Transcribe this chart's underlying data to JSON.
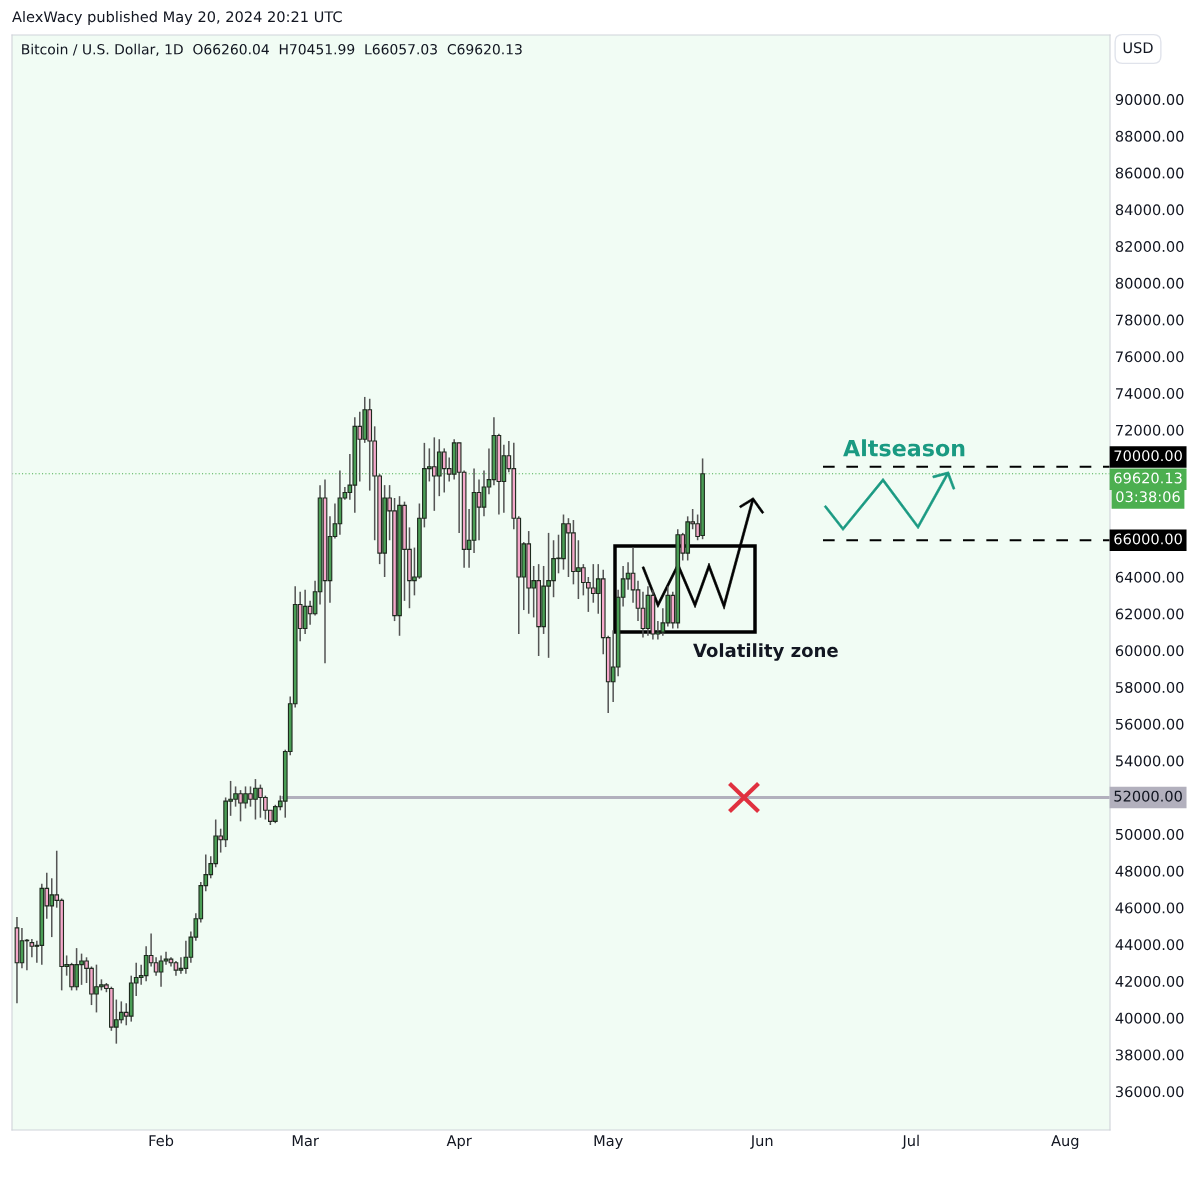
{
  "chart_data": {
    "type": "candlestick",
    "title": "Bitcoin / U.S. Dollar, 1D  O66260.04  H70451.99  L66057.03  C69620.13",
    "annotations": [
      "AlexWacy published May 20, 2024 20:21 UTC",
      "Altseason",
      "Volatility zone",
      "USD",
      "03:38:06"
    ],
    "x": [
      "2024-01-03",
      "2024-01-04",
      "2024-01-05",
      "2024-01-06",
      "2024-01-07",
      "2024-01-08",
      "2024-01-09",
      "2024-01-10",
      "2024-01-11",
      "2024-01-12",
      "2024-01-13",
      "2024-01-14",
      "2024-01-15",
      "2024-01-16",
      "2024-01-17",
      "2024-01-18",
      "2024-01-19",
      "2024-01-20",
      "2024-01-21",
      "2024-01-22",
      "2024-01-23",
      "2024-01-24",
      "2024-01-25",
      "2024-01-26",
      "2024-01-27",
      "2024-01-28",
      "2024-01-29",
      "2024-01-30",
      "2024-01-31",
      "2024-02-01",
      "2024-02-02",
      "2024-02-03",
      "2024-02-04",
      "2024-02-05",
      "2024-02-06",
      "2024-02-07",
      "2024-02-08",
      "2024-02-09",
      "2024-02-10",
      "2024-02-11",
      "2024-02-12",
      "2024-02-13",
      "2024-02-14",
      "2024-02-15",
      "2024-02-16",
      "2024-02-17",
      "2024-02-18",
      "2024-02-19",
      "2024-02-20",
      "2024-02-21",
      "2024-02-22",
      "2024-02-23",
      "2024-02-24",
      "2024-02-25",
      "2024-02-26",
      "2024-02-27",
      "2024-02-28",
      "2024-02-29",
      "2024-03-01",
      "2024-03-02",
      "2024-03-03",
      "2024-03-04",
      "2024-03-05",
      "2024-03-06",
      "2024-03-07",
      "2024-03-08",
      "2024-03-09",
      "2024-03-10",
      "2024-03-11",
      "2024-03-12",
      "2024-03-13",
      "2024-03-14",
      "2024-03-15",
      "2024-03-16",
      "2024-03-17",
      "2024-03-18",
      "2024-03-19",
      "2024-03-20",
      "2024-03-21",
      "2024-03-22",
      "2024-03-23",
      "2024-03-24",
      "2024-03-25",
      "2024-03-26",
      "2024-03-27",
      "2024-03-28",
      "2024-03-29",
      "2024-03-30",
      "2024-03-31",
      "2024-04-01",
      "2024-04-02",
      "2024-04-03",
      "2024-04-04",
      "2024-04-05",
      "2024-04-06",
      "2024-04-07",
      "2024-04-08",
      "2024-04-09",
      "2024-04-10",
      "2024-04-11",
      "2024-04-12",
      "2024-04-13",
      "2024-04-14",
      "2024-04-15",
      "2024-04-16",
      "2024-04-17",
      "2024-04-18",
      "2024-04-19",
      "2024-04-20",
      "2024-04-21",
      "2024-04-22",
      "2024-04-23",
      "2024-04-24",
      "2024-04-25",
      "2024-04-26",
      "2024-04-27",
      "2024-04-28",
      "2024-04-29",
      "2024-04-30",
      "2024-05-01",
      "2024-05-02",
      "2024-05-03",
      "2024-05-04",
      "2024-05-05",
      "2024-05-06",
      "2024-05-07",
      "2024-05-08",
      "2024-05-09",
      "2024-05-10",
      "2024-05-11",
      "2024-05-12",
      "2024-05-13",
      "2024-05-14",
      "2024-05-15",
      "2024-05-16",
      "2024-05-17",
      "2024-05-18",
      "2024-05-19",
      "2024-05-20"
    ],
    "ohlc": [
      [
        44900,
        45500,
        40800,
        43000
      ],
      [
        43000,
        44900,
        42700,
        44200
      ],
      [
        44200,
        44300,
        42600,
        44200
      ],
      [
        44100,
        44300,
        43300,
        43900
      ],
      [
        43900,
        44200,
        43000,
        43950
      ],
      [
        43950,
        47300,
        42900,
        47050
      ],
      [
        47050,
        47900,
        45400,
        46100
      ],
      [
        46100,
        47600,
        44400,
        46700
      ],
      [
        46700,
        49100,
        46000,
        46400
      ],
      [
        46400,
        46500,
        41500,
        42800
      ],
      [
        42800,
        43400,
        42300,
        42900
      ],
      [
        42900,
        43000,
        41500,
        41700
      ],
      [
        41700,
        43800,
        41500,
        42900
      ],
      [
        42900,
        43500,
        41800,
        43100
      ],
      [
        43100,
        43300,
        41900,
        42700
      ],
      [
        42700,
        42800,
        40700,
        41300
      ],
      [
        41300,
        42900,
        40300,
        41700
      ],
      [
        41700,
        42100,
        41500,
        41800
      ],
      [
        41800,
        41900,
        41400,
        41600
      ],
      [
        41600,
        41700,
        39300,
        39500
      ],
      [
        39500,
        41000,
        38600,
        39900
      ],
      [
        39900,
        40900,
        39700,
        40300
      ],
      [
        40300,
        40800,
        39600,
        40100
      ],
      [
        40100,
        42300,
        39800,
        41900
      ],
      [
        41900,
        43000,
        41200,
        42200
      ],
      [
        42200,
        42900,
        41800,
        42300
      ],
      [
        42300,
        43900,
        42000,
        43400
      ],
      [
        43400,
        44600,
        42800,
        43000
      ],
      [
        43000,
        43300,
        42300,
        42500
      ],
      [
        42500,
        43400,
        41700,
        43100
      ],
      [
        43100,
        43600,
        42900,
        43200
      ],
      [
        43200,
        43300,
        42800,
        43000
      ],
      [
        43000,
        43100,
        42300,
        42600
      ],
      [
        42600,
        43300,
        42400,
        42700
      ],
      [
        42700,
        44200,
        42400,
        43300
      ],
      [
        43300,
        44700,
        43000,
        44400
      ],
      [
        44400,
        45700,
        44200,
        45400
      ],
      [
        45400,
        47400,
        45200,
        47200
      ],
      [
        47200,
        48900,
        46900,
        47800
      ],
      [
        47800,
        48800,
        47600,
        48400
      ],
      [
        48400,
        50800,
        48200,
        49900
      ],
      [
        49900,
        50300,
        49000,
        49700
      ],
      [
        49700,
        52000,
        49300,
        51800
      ],
      [
        51800,
        52900,
        51000,
        51900
      ],
      [
        51900,
        52600,
        51500,
        52200
      ],
      [
        52200,
        52400,
        50700,
        51700
      ],
      [
        51700,
        52600,
        51400,
        52200
      ],
      [
        52200,
        52600,
        51500,
        51900
      ],
      [
        51900,
        53000,
        50800,
        52500
      ],
      [
        52500,
        52700,
        50900,
        52000
      ],
      [
        52000,
        52100,
        50800,
        51300
      ],
      [
        51300,
        51300,
        50500,
        50700
      ],
      [
        50700,
        51600,
        50600,
        51500
      ],
      [
        51500,
        52100,
        51300,
        51800
      ],
      [
        51800,
        54600,
        50900,
        54500
      ],
      [
        54500,
        57500,
        54300,
        57100
      ],
      [
        57100,
        63500,
        56900,
        62500
      ],
      [
        62500,
        63200,
        60500,
        61200
      ],
      [
        61200,
        63300,
        60900,
        62400
      ],
      [
        62400,
        62700,
        61400,
        62000
      ],
      [
        62000,
        63800,
        61900,
        63200
      ],
      [
        63200,
        69000,
        62500,
        68300
      ],
      [
        68300,
        69300,
        59300,
        63800
      ],
      [
        63800,
        67300,
        62600,
        66200
      ],
      [
        66200,
        68000,
        66100,
        66900
      ],
      [
        66900,
        69800,
        66300,
        68300
      ],
      [
        68300,
        68900,
        68200,
        68600
      ],
      [
        68600,
        70700,
        68200,
        69000
      ],
      [
        69000,
        72700,
        67500,
        72200
      ],
      [
        72200,
        73000,
        69200,
        71500
      ],
      [
        71500,
        73800,
        71300,
        73100
      ],
      [
        73100,
        73700,
        68700,
        71400
      ],
      [
        71400,
        72200,
        66000,
        69500
      ],
      [
        69500,
        69600,
        64700,
        65300
      ],
      [
        65300,
        69000,
        64000,
        68300
      ],
      [
        68300,
        69000,
        66000,
        67600
      ],
      [
        67600,
        68300,
        61600,
        61900
      ],
      [
        61900,
        68400,
        60800,
        67900
      ],
      [
        67900,
        68100,
        62700,
        65500
      ],
      [
        65500,
        66700,
        62300,
        63800
      ],
      [
        63800,
        65600,
        63000,
        64000
      ],
      [
        64000,
        68000,
        63900,
        67200
      ],
      [
        67200,
        71300,
        66700,
        69900
      ],
      [
        69900,
        71000,
        69200,
        70000
      ],
      [
        70000,
        71600,
        67600,
        69500
      ],
      [
        69500,
        71500,
        68400,
        70800
      ],
      [
        70800,
        71000,
        68600,
        69900
      ],
      [
        69900,
        70500,
        69200,
        69600
      ],
      [
        69600,
        71500,
        69300,
        71300
      ],
      [
        71300,
        71300,
        66400,
        69700
      ],
      [
        69700,
        69800,
        64500,
        65500
      ],
      [
        65500,
        67700,
        64500,
        66000
      ],
      [
        66000,
        69900,
        65300,
        68600
      ],
      [
        68600,
        69300,
        66000,
        67800
      ],
      [
        67800,
        69800,
        67300,
        68900
      ],
      [
        68900,
        71000,
        68500,
        69300
      ],
      [
        69300,
        72700,
        69000,
        71700
      ],
      [
        71700,
        71800,
        67400,
        69200
      ],
      [
        69200,
        71200,
        67500,
        70600
      ],
      [
        70600,
        71400,
        69700,
        69900
      ],
      [
        69900,
        71300,
        66600,
        67200
      ],
      [
        67200,
        67300,
        60900,
        64000
      ],
      [
        64000,
        65900,
        62200,
        65800
      ],
      [
        65800,
        66500,
        62000,
        63400
      ],
      [
        63400,
        64600,
        61800,
        63800
      ],
      [
        63800,
        64700,
        59700,
        61300
      ],
      [
        61300,
        64600,
        60900,
        63500
      ],
      [
        63500,
        66400,
        59600,
        63800
      ],
      [
        63800,
        66000,
        62900,
        65000
      ],
      [
        65000,
        66300,
        64200,
        65000
      ],
      [
        65000,
        67400,
        64400,
        66900
      ],
      [
        66900,
        67200,
        64000,
        66400
      ],
      [
        66400,
        67100,
        63600,
        64300
      ],
      [
        64300,
        66000,
        62800,
        64500
      ],
      [
        64500,
        64700,
        63000,
        63700
      ],
      [
        63700,
        64000,
        62100,
        63400
      ],
      [
        63400,
        64700,
        62600,
        63100
      ],
      [
        63100,
        64700,
        62000,
        63900
      ],
      [
        63900,
        64400,
        59800,
        60700
      ],
      [
        60700,
        60800,
        56600,
        58300
      ],
      [
        58300,
        61100,
        57200,
        59100
      ],
      [
        59100,
        63300,
        58600,
        62900
      ],
      [
        62900,
        64600,
        62400,
        63900
      ],
      [
        63900,
        64800,
        63300,
        64200
      ],
      [
        64200,
        65600,
        62600,
        63300
      ],
      [
        63300,
        63800,
        61600,
        62300
      ],
      [
        62300,
        63200,
        60700,
        61200
      ],
      [
        61200,
        63500,
        60800,
        63000
      ],
      [
        63000,
        63300,
        60600,
        60900
      ],
      [
        60900,
        61600,
        60600,
        61000
      ],
      [
        61000,
        62300,
        60800,
        61500
      ],
      [
        61500,
        63500,
        61300,
        63000
      ],
      [
        63000,
        63200,
        61200,
        61500
      ],
      [
        61500,
        66600,
        61200,
        66300
      ],
      [
        66300,
        66400,
        64900,
        65300
      ],
      [
        65300,
        67300,
        64900,
        67000
      ],
      [
        67000,
        67700,
        66600,
        66900
      ],
      [
        66900,
        67400,
        66000,
        66200
      ],
      [
        66260.04,
        70451.99,
        66057.03,
        69620.13
      ]
    ],
    "xlim": [
      "2024-01-02",
      "2024-08-10"
    ],
    "xticks": [
      {
        "value": "2024-02-01",
        "label": "Feb"
      },
      {
        "value": "2024-03-01",
        "label": "Mar"
      },
      {
        "value": "2024-04-01",
        "label": "Apr"
      },
      {
        "value": "2024-05-01",
        "label": "May"
      },
      {
        "value": "2024-06-01",
        "label": "Jun"
      },
      {
        "value": "2024-07-01",
        "label": "Jul"
      },
      {
        "value": "2024-08-01",
        "label": "Aug"
      }
    ],
    "ylim": [
      33900,
      93500
    ],
    "yticks": [
      {
        "value": 36000,
        "label": "36000.00"
      },
      {
        "value": 38000,
        "label": "38000.00"
      },
      {
        "value": 40000,
        "label": "40000.00"
      },
      {
        "value": 42000,
        "label": "42000.00"
      },
      {
        "value": 44000,
        "label": "44000.00"
      },
      {
        "value": 46000,
        "label": "46000.00"
      },
      {
        "value": 48000,
        "label": "48000.00"
      },
      {
        "value": 50000,
        "label": "50000.00"
      },
      {
        "value": 54000,
        "label": "54000.00"
      },
      {
        "value": 56000,
        "label": "56000.00"
      },
      {
        "value": 58000,
        "label": "58000.00"
      },
      {
        "value": 60000,
        "label": "60000.00"
      },
      {
        "value": 62000,
        "label": "62000.00"
      },
      {
        "value": 64000,
        "label": "64000.00"
      },
      {
        "value": 72000,
        "label": "72000.00"
      },
      {
        "value": 74000,
        "label": "74000.00"
      },
      {
        "value": 76000,
        "label": "76000.00"
      },
      {
        "value": 78000,
        "label": "78000.00"
      },
      {
        "value": 80000,
        "label": "80000.00"
      },
      {
        "value": 82000,
        "label": "82000.00"
      },
      {
        "value": 84000,
        "label": "84000.00"
      },
      {
        "value": 86000,
        "label": "86000.00"
      },
      {
        "value": 88000,
        "label": "88000.00"
      },
      {
        "value": 90000,
        "label": "90000.00"
      }
    ],
    "ref_lines": [
      {
        "axis": "y",
        "value": 70000,
        "label": "70000.00",
        "color": "#000000",
        "line_style": "dashed"
      },
      {
        "axis": "y",
        "value": 66000,
        "label": "66000.00",
        "color": "#000000",
        "line_style": "dashed"
      },
      {
        "axis": "y",
        "value": 52000,
        "label": "52000.00",
        "color": "#b2b0bd",
        "line_style": "solid"
      },
      {
        "axis": "y",
        "value": 69620.13,
        "label": "69620.13",
        "color": "#4caf50",
        "line_style": "dotted"
      }
    ],
    "grid": false
  }
}
